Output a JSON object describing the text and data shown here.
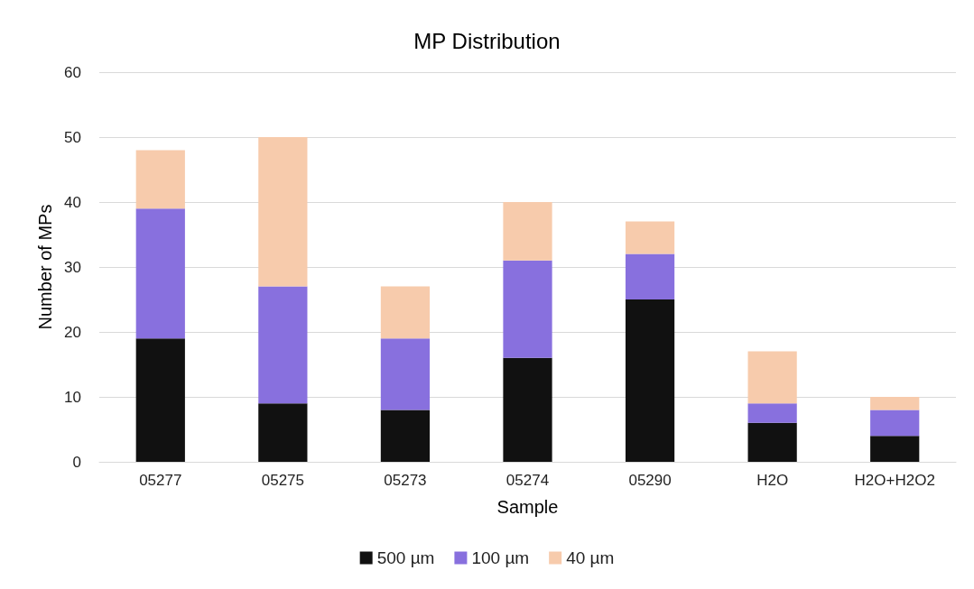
{
  "chart_data": {
    "type": "bar",
    "title": "MP Distribution",
    "xlabel": "Sample",
    "ylabel": "Number of MPs",
    "categories": [
      "05277",
      "05275",
      "05273",
      "05274",
      "05290",
      "H2O",
      "H2O+H2O2"
    ],
    "stacked": true,
    "series": [
      {
        "name": "500 µm",
        "color": "#111111",
        "values": [
          19,
          9,
          8,
          16,
          25,
          6,
          4
        ]
      },
      {
        "name": "100 µm",
        "color": "#8870de",
        "values": [
          20,
          18,
          11,
          15,
          7,
          3,
          4
        ]
      },
      {
        "name": "40 µm",
        "color": "#f7cbac",
        "values": [
          9,
          23,
          8,
          9,
          5,
          8,
          2
        ]
      }
    ],
    "ylim": [
      0,
      60
    ],
    "yticks": [
      0,
      10,
      20,
      30,
      40,
      50,
      60
    ],
    "grid": "y",
    "legend": "bottom"
  }
}
